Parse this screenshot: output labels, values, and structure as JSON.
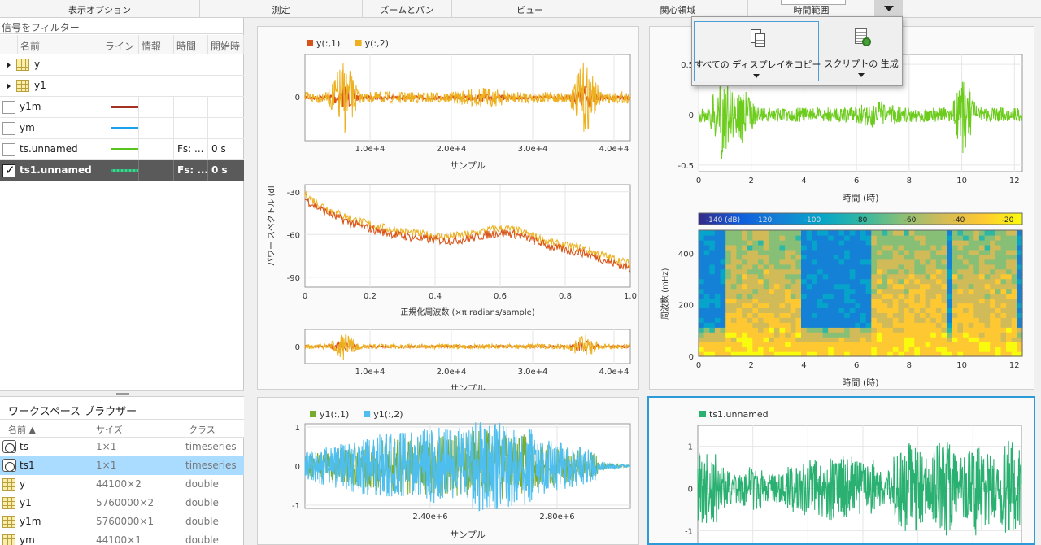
{
  "toolstrip": {
    "sections": [
      "表示オプション",
      "測定",
      "ズームとパン",
      "ビュー",
      "関心領域",
      "時間範囲"
    ]
  },
  "popup": {
    "copy_label": "すべての ディスプレイをコピー",
    "script_label": "スクリプトの 生成"
  },
  "signals": {
    "filter_placeholder": "信号をフィルター",
    "columns": [
      "名前",
      "ライン",
      "情報",
      "時間",
      "開始時"
    ],
    "rows": [
      {
        "name": "y",
        "type": "group",
        "fs": "",
        "t": ""
      },
      {
        "name": "y1",
        "type": "group",
        "fs": "",
        "t": ""
      },
      {
        "name": "y1m",
        "type": "signal",
        "line_color": "#a33222",
        "fs": "",
        "t": ""
      },
      {
        "name": "ym",
        "type": "signal",
        "line_color": "#1aa3ec",
        "fs": "",
        "t": ""
      },
      {
        "name": "ts.unnamed",
        "type": "signal",
        "line_color": "#56c41b",
        "fs": "Fs: ...",
        "t": "0 s"
      },
      {
        "name": "ts1.unnamed",
        "type": "signal",
        "line_color": "#2ab070",
        "fs": "Fs: ...",
        "t": "0 s",
        "checked": true,
        "selected": true
      }
    ]
  },
  "workspace": {
    "title": "ワークスペース ブラウザー",
    "columns": [
      "名前 ▲",
      "サイズ",
      "クラス"
    ],
    "rows": [
      {
        "name": "ts",
        "size": "1×1",
        "class": "timeseries",
        "icon": "timeseries-icon"
      },
      {
        "name": "ts1",
        "size": "1×1",
        "class": "timeseries",
        "icon": "timeseries-icon",
        "selected": true
      },
      {
        "name": "y",
        "size": "44100×2",
        "class": "double",
        "icon": "matrix-icon"
      },
      {
        "name": "y1",
        "size": "5760000×2",
        "class": "double",
        "icon": "matrix-icon"
      },
      {
        "name": "y1m",
        "size": "5760000×1",
        "class": "double",
        "icon": "matrix-icon"
      },
      {
        "name": "ym",
        "size": "44100×1",
        "class": "double",
        "icon": "matrix-icon"
      }
    ]
  },
  "plots": {
    "p1": {
      "legend": [
        "y(:,1)",
        "y(:,2)"
      ],
      "legend_colors": [
        "#d95319",
        "#edb120"
      ],
      "xticks": [
        "1.0e+4",
        "2.0e+4",
        "3.0e+4",
        "4.0e+4"
      ],
      "yticks": [
        "0"
      ],
      "xlabel": "サンプル"
    },
    "p2": {
      "ylabel": "パワー スペクトル (dl",
      "xticks": [
        "0",
        "0.2",
        "0.4",
        "0.6",
        "0.8",
        "1.0"
      ],
      "yticks": [
        "-30",
        "-60",
        "-90"
      ],
      "xlabel": "正規化周波数 (×π radians/sample)"
    },
    "p3": {
      "xticks": [
        "1.0e+4",
        "2.0e+4",
        "3.0e+4",
        "4.0e+4"
      ],
      "yticks": [
        "0"
      ],
      "xlabel": "サンプル"
    },
    "p4": {
      "xticks": [
        "0",
        "2",
        "4",
        "6",
        "8",
        "10",
        "12"
      ],
      "yticks": [
        "0.5",
        "0",
        "-0.5"
      ],
      "xlabel": "時間 (時)",
      "color": "#6ccc1c"
    },
    "p5": {
      "colorbar_ticks": [
        "-140 (dB)",
        "-120",
        "-100",
        "-80",
        "-60",
        "-40",
        "-20"
      ],
      "xticks": [
        "0",
        "2",
        "4",
        "6",
        "8",
        "10",
        "12"
      ],
      "yticks": [
        "400",
        "200",
        "0"
      ],
      "ylabel": "周波数 (mHz)",
      "xlabel": "時間 (時)"
    },
    "p6": {
      "legend": [
        "y1(:,1)",
        "y1(:,2)"
      ],
      "legend_colors": [
        "#77ac30",
        "#4dbeee"
      ],
      "xticks": [
        "2.40e+6",
        "2.80e+6"
      ],
      "yticks": [
        "1",
        "0",
        "-1"
      ],
      "xlabel": "サンプル"
    },
    "p7": {
      "legend": [
        "ts1.unnamed"
      ],
      "legend_colors": [
        "#2ab070"
      ],
      "yticks": [
        "1",
        "0",
        "-1"
      ]
    }
  }
}
